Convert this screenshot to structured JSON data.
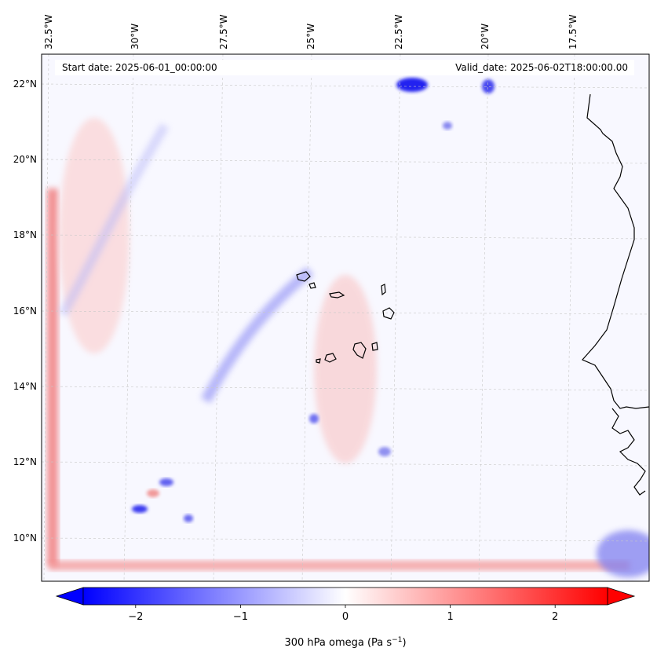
{
  "map": {
    "start_date": "Start date: 2025-06-01_00:00:00",
    "valid_date": "Valid_date: 2025-06-02T18:00:00.00",
    "lon_labels": [
      "32.5°W",
      "30°W",
      "27.5°W",
      "25°W",
      "22.5°W",
      "20°W",
      "17.5°W"
    ],
    "lat_labels": [
      "22°N",
      "20°N",
      "18°N",
      "16°N",
      "14°N",
      "12°N",
      "10°N"
    ],
    "field": "300 hPa omega",
    "colors": {
      "negative": "#0000ff",
      "neutral": "#ffffff",
      "positive": "#ff0000",
      "coastline": "#000000",
      "gridline": "#c8c8c8"
    }
  },
  "colorbar": {
    "ticks": [
      "−2",
      "−1",
      "0",
      "1",
      "2"
    ],
    "tick_values": [
      -2,
      -1,
      0,
      1,
      2
    ],
    "vmin": -2.5,
    "vmax": 2.5,
    "label_text": "300 hPa omega (Pa s",
    "label_exp": "−1",
    "label_close": ")"
  }
}
